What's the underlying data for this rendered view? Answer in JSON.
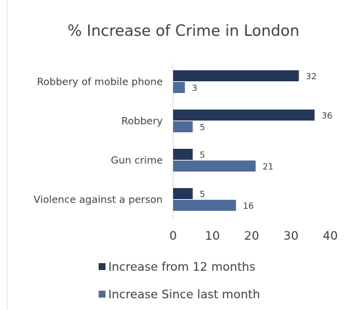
{
  "chart_data": {
    "type": "bar",
    "orientation": "horizontal",
    "title": "% Increase of Crime in London",
    "categories": [
      "Robbery of mobile phone",
      "Robbery",
      "Gun crime",
      "Violence against a person"
    ],
    "series": [
      {
        "name": "Increase from 12 months",
        "values": [
          32,
          36,
          5,
          5
        ],
        "color": "#263659"
      },
      {
        "name": "Increase Since last month",
        "values": [
          3,
          5,
          21,
          16
        ],
        "color": "#4E6B9A"
      }
    ],
    "xlim": [
      0,
      40
    ],
    "xticks": [
      0,
      10,
      20,
      30,
      40
    ],
    "grid": false,
    "legend_position": "bottom",
    "axis_color": "#D9D9D9",
    "text_color": "#404040"
  }
}
